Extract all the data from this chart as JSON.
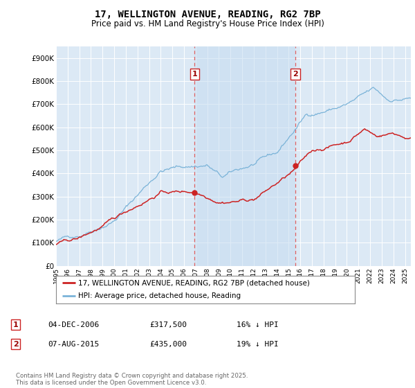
{
  "title": "17, WELLINGTON AVENUE, READING, RG2 7BP",
  "subtitle": "Price paid vs. HM Land Registry's House Price Index (HPI)",
  "yticks": [
    0,
    100000,
    200000,
    300000,
    400000,
    500000,
    600000,
    700000,
    800000,
    900000
  ],
  "ytick_labels": [
    "£0",
    "£100K",
    "£200K",
    "£300K",
    "£400K",
    "£500K",
    "£600K",
    "£700K",
    "£800K",
    "£900K"
  ],
  "ylim": [
    0,
    950000
  ],
  "background_color": "#ffffff",
  "plot_bg_color": "#dce9f5",
  "grid_color": "#ffffff",
  "hpi_color": "#7ab3d8",
  "price_color": "#cc2222",
  "marker1_x": 2006.92,
  "marker1_y": 317500,
  "marker2_x": 2015.58,
  "marker2_y": 435000,
  "legend_property": "17, WELLINGTON AVENUE, READING, RG2 7BP (detached house)",
  "legend_hpi": "HPI: Average price, detached house, Reading",
  "table_rows": [
    {
      "num": "1",
      "date": "04-DEC-2006",
      "price": "£317,500",
      "hpi": "16% ↓ HPI"
    },
    {
      "num": "2",
      "date": "07-AUG-2015",
      "price": "£435,000",
      "hpi": "19% ↓ HPI"
    }
  ],
  "footer": "Contains HM Land Registry data © Crown copyright and database right 2025.\nThis data is licensed under the Open Government Licence v3.0.",
  "xmin": 1995,
  "xmax": 2025.5
}
